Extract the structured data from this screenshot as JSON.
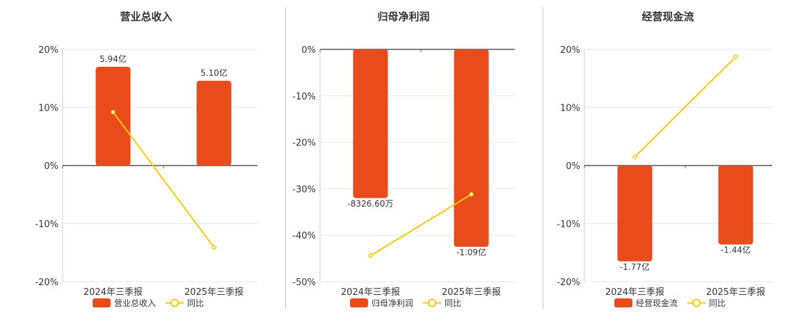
{
  "colors": {
    "bar": "#E84C1C",
    "line": "#F2C811",
    "axis": "#555555",
    "grid": "#e6e6e6"
  },
  "chart_data": [
    {
      "type": "bar",
      "title": "营业总收入",
      "categories": [
        "2024年三季报",
        "2025年三季报"
      ],
      "ylim": [
        -20,
        20
      ],
      "yticks": [
        "20%",
        "10%",
        "0%",
        "-10%",
        "-20%"
      ],
      "series": [
        {
          "name": "营业总收入",
          "kind": "bar",
          "values": [
            17,
            14.6
          ],
          "labels": [
            "5.94亿",
            "5.10亿"
          ]
        },
        {
          "name": "同比",
          "kind": "line",
          "values": [
            9.2,
            -14.1
          ]
        }
      ],
      "legend": [
        "营业总收入",
        "同比"
      ]
    },
    {
      "type": "bar",
      "title": "归母净利润",
      "categories": [
        "2024年三季报",
        "2025年三季报"
      ],
      "ylim": [
        -50,
        0
      ],
      "yticks": [
        "0%",
        "-10%",
        "-20%",
        "-30%",
        "-40%",
        "-50%"
      ],
      "series": [
        {
          "name": "归母净利润",
          "kind": "bar",
          "values": [
            -32,
            -42.5
          ],
          "labels": [
            "-8326.60万",
            "-1.09亿"
          ]
        },
        {
          "name": "同比",
          "kind": "line",
          "values": [
            -44.4,
            -31.2
          ]
        }
      ],
      "legend": [
        "归母净利润",
        "同比"
      ]
    },
    {
      "type": "bar",
      "title": "经营现金流",
      "categories": [
        "2024年三季报",
        "2025年三季报"
      ],
      "ylim": [
        -20,
        20
      ],
      "yticks": [
        "20%",
        "10%",
        "0%",
        "-10%",
        "-20%"
      ],
      "series": [
        {
          "name": "经营现金流",
          "kind": "bar",
          "values": [
            -16.5,
            -13.6
          ],
          "labels": [
            "-1.77亿",
            "-1.44亿"
          ]
        },
        {
          "name": "同比",
          "kind": "line",
          "values": [
            1.5,
            18.7
          ]
        }
      ],
      "legend": [
        "经营现金流",
        "同比"
      ]
    }
  ]
}
